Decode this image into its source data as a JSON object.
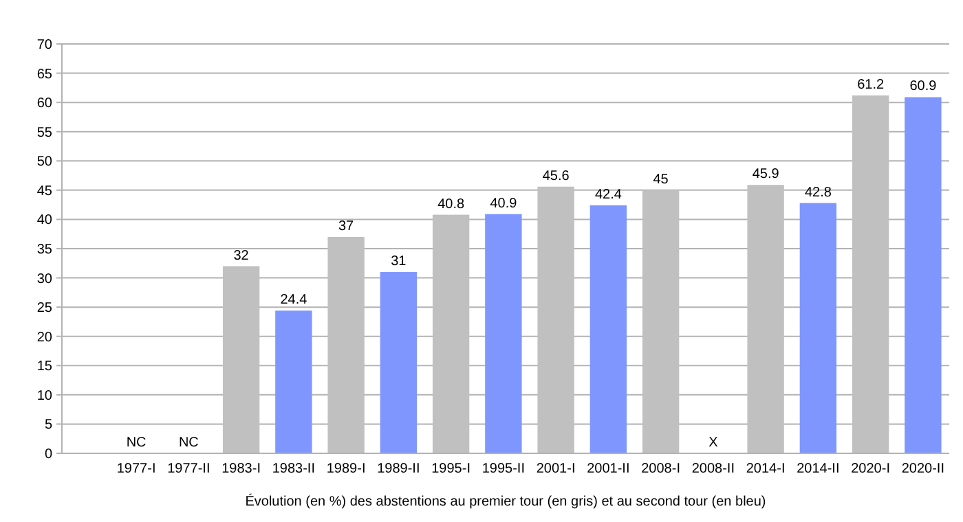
{
  "chart_data": {
    "type": "bar",
    "xlabel": "Évolution (en %) des abstentions au premier tour (en gris) et au second tour (en bleu)",
    "categories": [
      "1977-I",
      "1977-II",
      "1983-I",
      "1983-II",
      "1989-I",
      "1989-II",
      "1995-I",
      "1995-II",
      "2001-I",
      "2001-II",
      "2008-I",
      "2008-II",
      "2014-I",
      "2014-II",
      "2020-I",
      "2020-II"
    ],
    "values": [
      null,
      null,
      32,
      24.4,
      37,
      31,
      40.8,
      40.9,
      45.6,
      42.4,
      45,
      null,
      45.9,
      42.8,
      61.2,
      60.9
    ],
    "colors": [
      null,
      null,
      "#c0c0c0",
      "#7f96ff",
      "#c0c0c0",
      "#7f96ff",
      "#c0c0c0",
      "#7f96ff",
      "#c0c0c0",
      "#7f96ff",
      "#c0c0c0",
      null,
      "#c0c0c0",
      "#7f96ff",
      "#c0c0c0",
      "#7f96ff"
    ],
    "value_labels": [
      "NC",
      "NC",
      "32",
      "24.4",
      "37",
      "31",
      "40.8",
      "40.9",
      "45.6",
      "42.4",
      "45",
      "X",
      "45.9",
      "42.8",
      "61.2",
      "60.9"
    ],
    "ylim": [
      0,
      70
    ],
    "yticks": [
      0,
      5,
      10,
      15,
      20,
      25,
      30,
      35,
      40,
      45,
      50,
      55,
      60,
      65,
      70
    ],
    "grid": "y"
  }
}
